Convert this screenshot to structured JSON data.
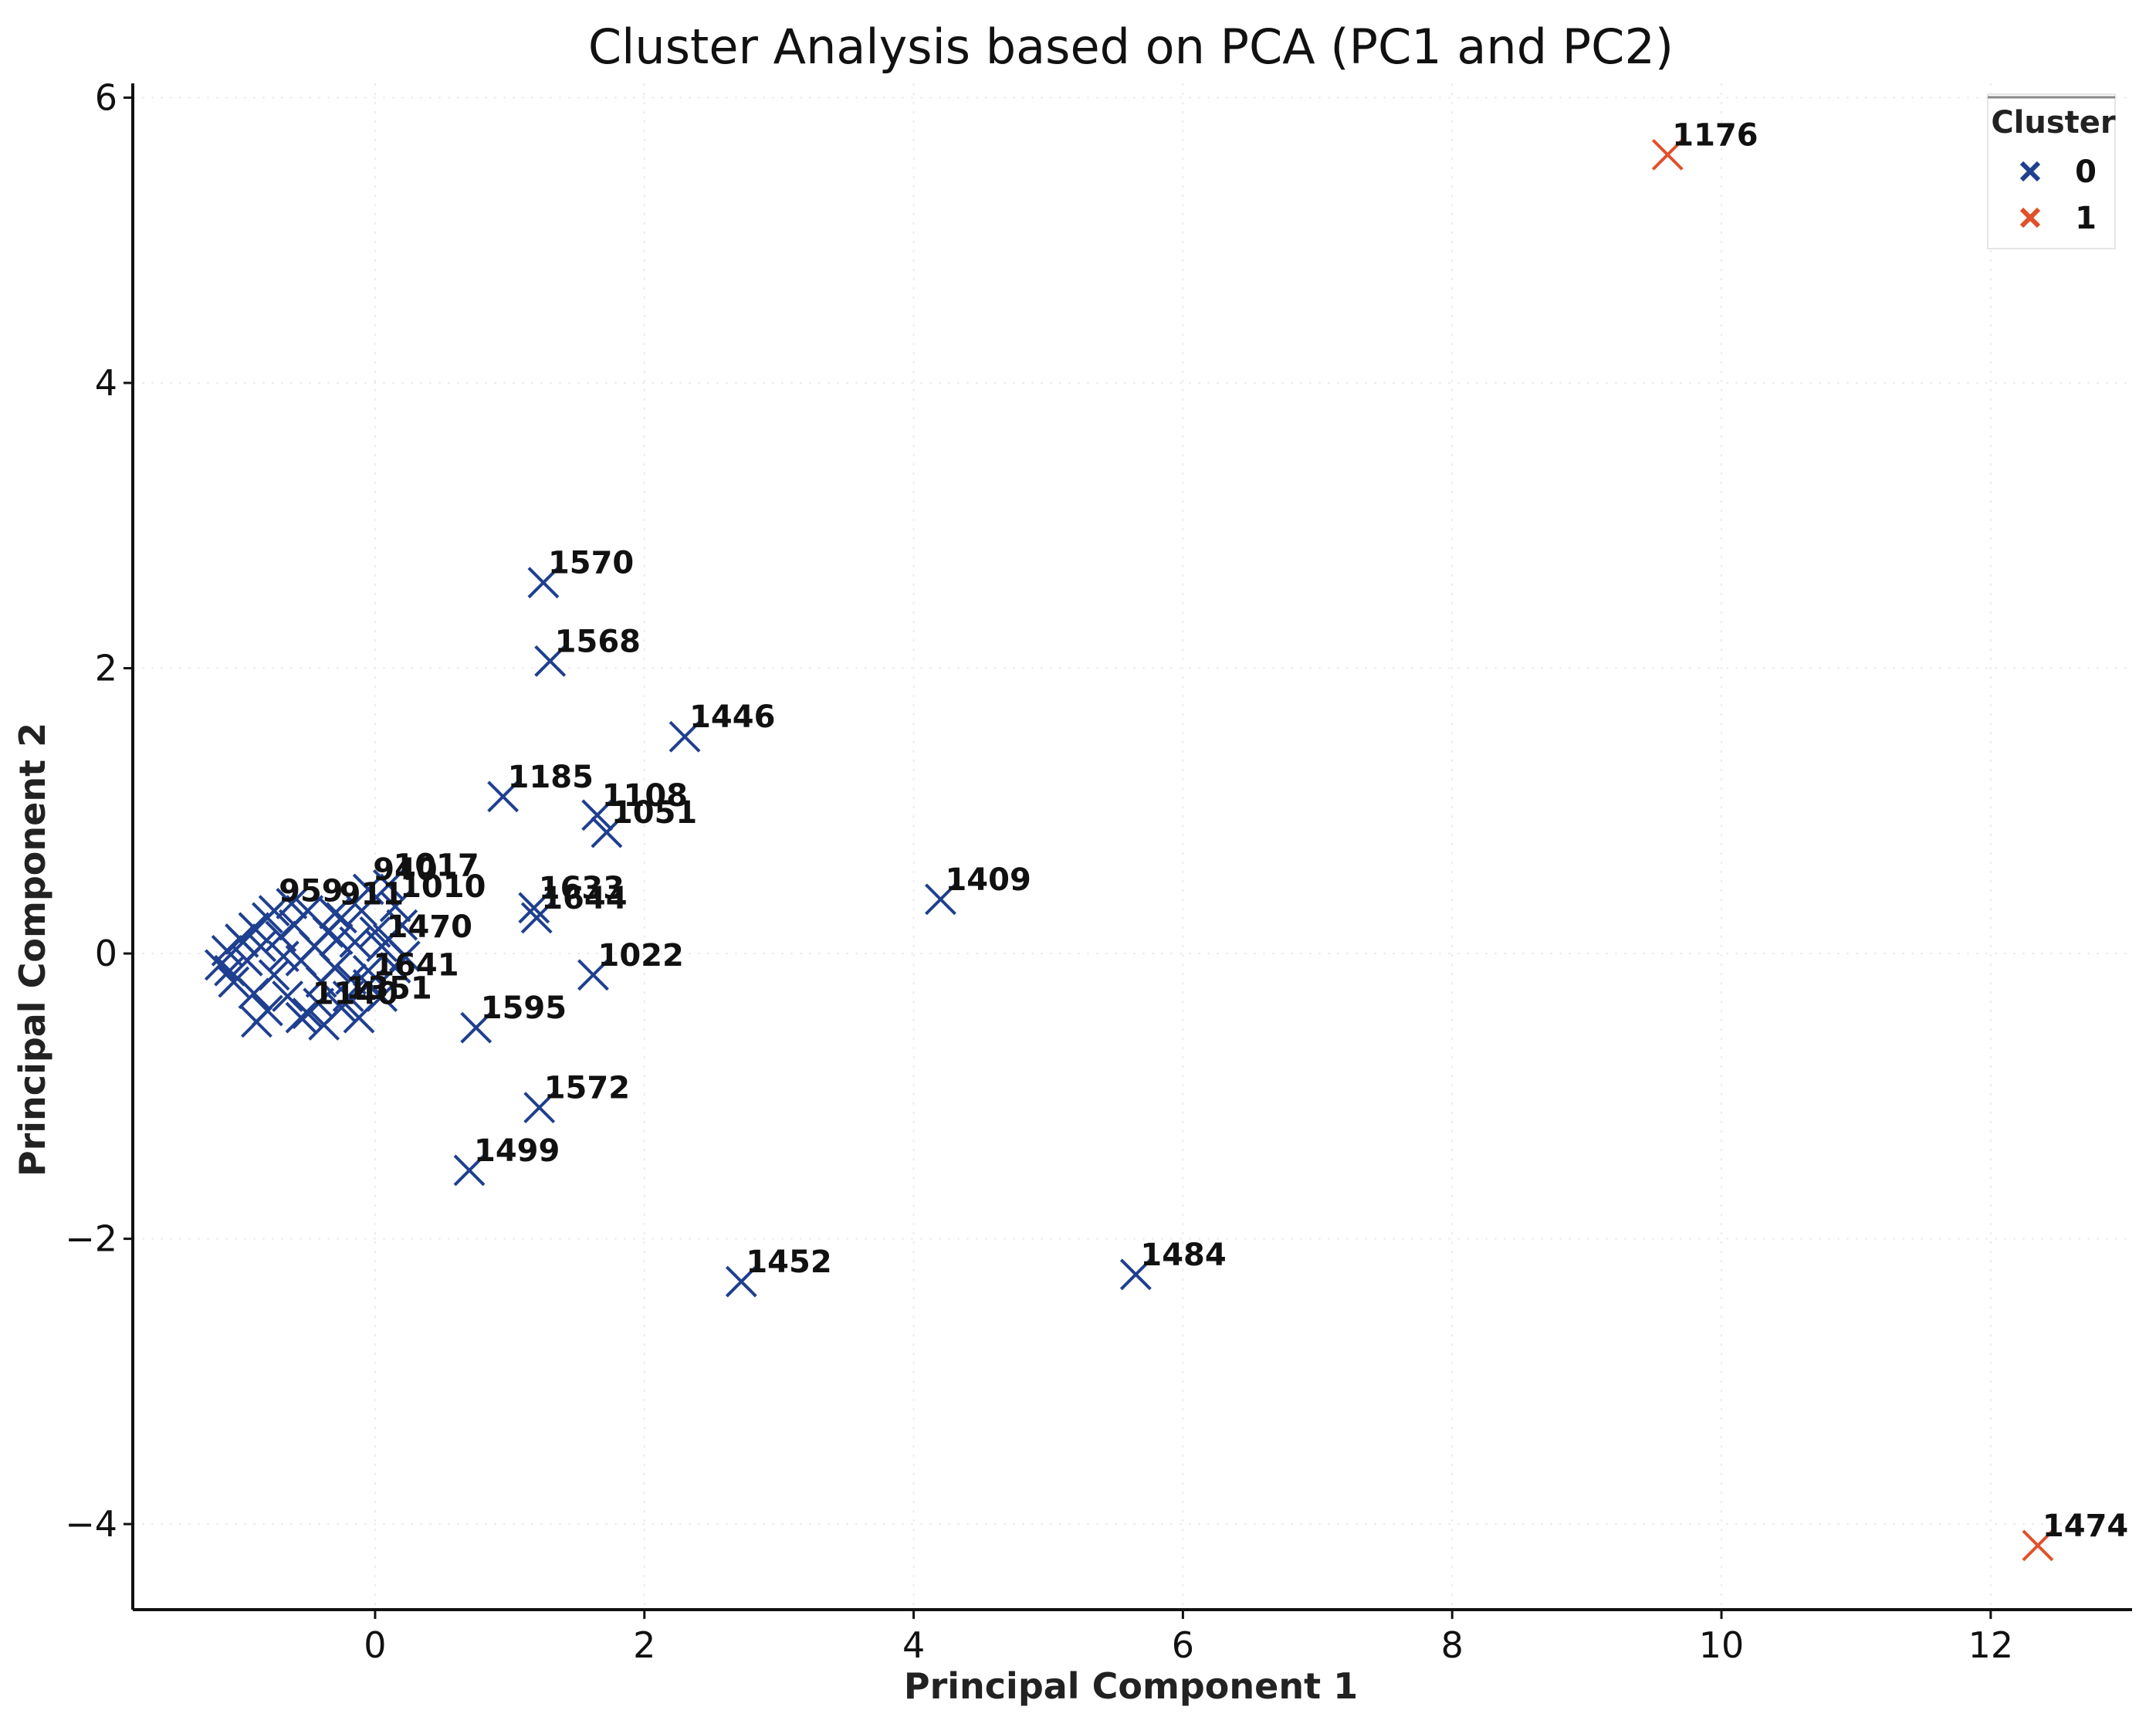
{
  "chart_data": {
    "type": "scatter",
    "title": "Cluster Analysis based on PCA (PC1 and PC2)",
    "xlabel": "Principal Component 1",
    "ylabel": "Principal Component 2",
    "xlim": [
      -1.8,
      13.05
    ],
    "ylim": [
      -4.6,
      6.1
    ],
    "xticks": [
      0,
      2,
      4,
      6,
      8,
      10,
      12
    ],
    "yticks": [
      -4,
      -2,
      0,
      2,
      4,
      6
    ],
    "xtick_labels": [
      "0",
      "2",
      "4",
      "6",
      "8",
      "10",
      "12"
    ],
    "ytick_labels": [
      "−4",
      "−2",
      "0",
      "2",
      "4",
      "6"
    ],
    "grid": true,
    "marker": "x",
    "legend": {
      "title": "Cluster",
      "position": "top-right",
      "entries": [
        {
          "label": "0",
          "color": "#1f3f8f"
        },
        {
          "label": "1",
          "color": "#e0502a"
        }
      ]
    },
    "series": [
      {
        "name": "0",
        "color": "#1f3f8f",
        "points": [
          {
            "x": 1.25,
            "y": 2.6,
            "label": "1570"
          },
          {
            "x": 1.3,
            "y": 2.05,
            "label": "1568"
          },
          {
            "x": 2.3,
            "y": 1.52,
            "label": "1446"
          },
          {
            "x": 0.95,
            "y": 1.1,
            "label": "1185"
          },
          {
            "x": 1.65,
            "y": 0.97,
            "label": "1108"
          },
          {
            "x": 1.72,
            "y": 0.85,
            "label": "1051"
          },
          {
            "x": 4.2,
            "y": 0.38,
            "label": "1409"
          },
          {
            "x": 1.18,
            "y": 0.32,
            "label": "1633"
          },
          {
            "x": 1.2,
            "y": 0.25,
            "label": "1644"
          },
          {
            "x": 1.62,
            "y": -0.15,
            "label": "1022"
          },
          {
            "x": 0.75,
            "y": -0.52,
            "label": "1595"
          },
          {
            "x": 1.22,
            "y": -1.08,
            "label": "1572"
          },
          {
            "x": 0.7,
            "y": -1.52,
            "label": "1499"
          },
          {
            "x": 2.72,
            "y": -2.3,
            "label": "1452"
          },
          {
            "x": 5.65,
            "y": -2.25,
            "label": "1484"
          },
          {
            "x": -0.05,
            "y": 0.45,
            "label": "940"
          },
          {
            "x": 0.1,
            "y": 0.48,
            "label": "1017"
          },
          {
            "x": 0.15,
            "y": 0.33,
            "label": "1010"
          },
          {
            "x": -0.75,
            "y": 0.3,
            "label": "959"
          },
          {
            "x": -0.3,
            "y": 0.28,
            "label": "911"
          },
          {
            "x": 0.05,
            "y": 0.05,
            "label": "1470"
          },
          {
            "x": -0.05,
            "y": -0.22,
            "label": "1641"
          },
          {
            "x": -0.25,
            "y": -0.38,
            "label": "1351"
          },
          {
            "x": -0.5,
            "y": -0.42,
            "label": "1140"
          },
          {
            "x": -1.15,
            "y": -0.08
          },
          {
            "x": -1.1,
            "y": 0.02
          },
          {
            "x": -1.05,
            "y": -0.2
          },
          {
            "x": -1.0,
            "y": 0.1
          },
          {
            "x": -0.95,
            "y": -0.05
          },
          {
            "x": -0.9,
            "y": 0.18
          },
          {
            "x": -0.9,
            "y": -0.28
          },
          {
            "x": -0.85,
            "y": 0.05
          },
          {
            "x": -0.8,
            "y": -0.4
          },
          {
            "x": -0.8,
            "y": 0.25
          },
          {
            "x": -0.75,
            "y": -0.15
          },
          {
            "x": -0.7,
            "y": 0.12
          },
          {
            "x": -0.65,
            "y": -0.3
          },
          {
            "x": -0.6,
            "y": 0.2
          },
          {
            "x": -0.55,
            "y": -0.05
          },
          {
            "x": -0.55,
            "y": -0.45
          },
          {
            "x": -0.5,
            "y": 0.3
          },
          {
            "x": -0.45,
            "y": 0.05
          },
          {
            "x": -0.4,
            "y": -0.2
          },
          {
            "x": -0.38,
            "y": -0.5
          },
          {
            "x": -0.35,
            "y": 0.15
          },
          {
            "x": -0.3,
            "y": -0.1
          },
          {
            "x": -0.25,
            "y": 0.25
          },
          {
            "x": -0.2,
            "y": -0.3
          },
          {
            "x": -0.15,
            "y": 0.08
          },
          {
            "x": -0.12,
            "y": -0.45
          },
          {
            "x": -0.1,
            "y": 0.3
          },
          {
            "x": -0.05,
            "y": -0.12
          },
          {
            "x": 0.0,
            "y": 0.15
          },
          {
            "x": 0.05,
            "y": -0.3
          },
          {
            "x": 0.1,
            "y": 0.1
          },
          {
            "x": 0.15,
            "y": -0.1
          },
          {
            "x": 0.2,
            "y": 0.2
          },
          {
            "x": 0.22,
            "y": -0.02
          },
          {
            "x": -1.08,
            "y": -0.12
          },
          {
            "x": -0.98,
            "y": 0.08
          },
          {
            "x": -0.68,
            "y": -0.02
          },
          {
            "x": -0.62,
            "y": 0.35
          },
          {
            "x": -0.42,
            "y": -0.35
          },
          {
            "x": -0.28,
            "y": 0.1
          },
          {
            "x": -0.18,
            "y": -0.18
          },
          {
            "x": -0.88,
            "y": -0.48
          }
        ]
      },
      {
        "name": "1",
        "color": "#e0502a",
        "points": [
          {
            "x": 9.6,
            "y": 5.6,
            "label": "1176"
          },
          {
            "x": 12.35,
            "y": -4.15,
            "label": "1474"
          }
        ]
      }
    ]
  }
}
